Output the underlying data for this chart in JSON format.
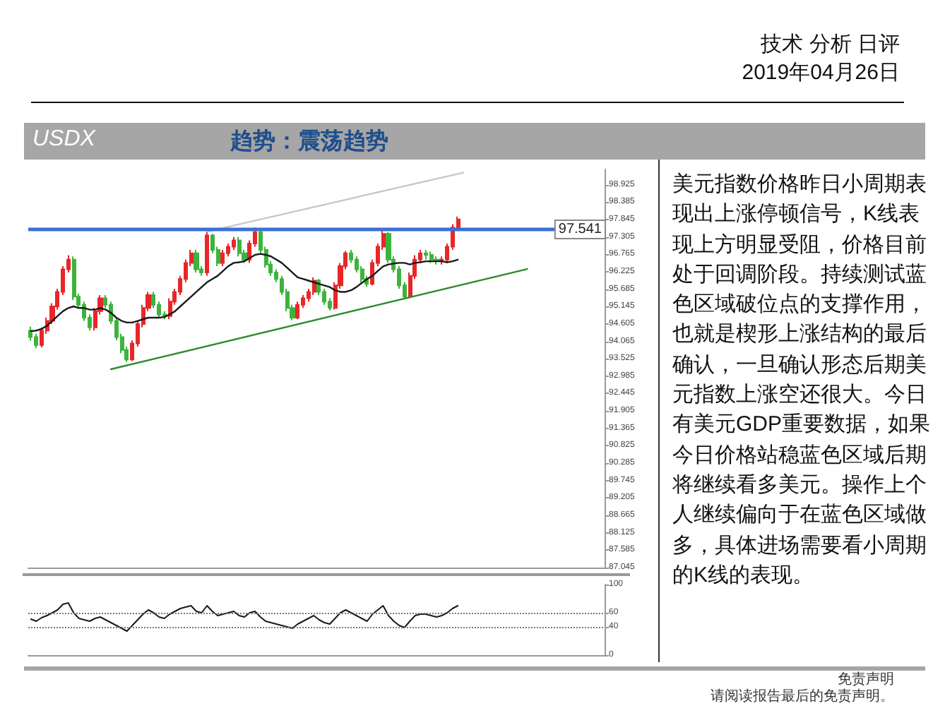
{
  "chart_data": [
    {
      "type": "candlestick",
      "title": "USDX",
      "subtitle": "趋势：震荡趋势",
      "annotations": [
        "技术 分析 日评",
        "2019年04月26日",
        "美元指数价格昨日小周期表现出上涨停顿信号，K线表现上方明显受阻，价格目前处于回调阶段。持续测试蓝色区域破位点的支撑作用，也就是楔形上涨结构的最后确认，一旦确认形态后期美元指数上涨空还很大。今日有美元GDP重要数据，如果今日价格站稳蓝色区域后期将继续看多美元。操作上个人继续偏向于在蓝色区域做多，具体进场需要看小周期的K线的表现。",
        "免责声明",
        "请阅读报告最后的免责声明。"
      ],
      "colors": [
        "#3cb43c",
        "#3cb43c",
        "#e8262a",
        "#e8262a",
        "#e8262a",
        "#e8262a",
        "#e8262a",
        "#e8262a",
        "#3cb43c",
        "#3cb43c",
        "#3cb43c",
        "#3cb43c",
        "#e8262a",
        "#e8262a",
        "#3cb43c",
        "#3cb43c",
        "#3cb43c",
        "#3cb43c",
        "#3cb43c",
        "#e8262a",
        "#e8262a",
        "#e8262a",
        "#e8262a",
        "#3cb43c",
        "#3cb43c",
        "#3cb43c",
        "#e8262a",
        "#e8262a",
        "#e8262a",
        "#e8262a",
        "#e8262a",
        "#3cb43c",
        "#3cb43c",
        "#e8262a",
        "#3cb43c",
        "#3cb43c",
        "#e8262a",
        "#e8262a",
        "#e8262a",
        "#3cb43c",
        "#3cb43c",
        "#e8262a",
        "#e8262a",
        "#3cb43c",
        "#3cb43c",
        "#3cb43c",
        "#3cb43c",
        "#3cb43c",
        "#3cb43c",
        "#3cb43c",
        "#e8262a",
        "#e8262a",
        "#e8262a",
        "#e8262a",
        "#3cb43c",
        "#3cb43c",
        "#3cb43c",
        "#e8262a",
        "#e8262a",
        "#e8262a",
        "#3cb43c",
        "#3cb43c",
        "#3cb43c",
        "#3cb43c",
        "#e8262a",
        "#e8262a",
        "#e8262a",
        "#3cb43c",
        "#3cb43c",
        "#3cb43c",
        "#3cb43c",
        "#e8262a",
        "#e8262a",
        "#e8262a",
        "#3cb43c",
        "#3cb43c",
        "#3cb43c",
        "#e8262a",
        "#e8262a",
        "#e8262a",
        "#e8262a",
        null,
        null,
        null,
        null,
        null,
        null,
        null,
        null,
        null,
        null,
        null,
        null,
        null,
        null,
        null,
        null,
        null,
        null,
        null,
        null,
        null,
        null,
        null,
        null,
        null,
        null,
        null
      ],
      "categories": [
        null,
        null,
        null,
        null,
        null,
        null,
        null,
        null,
        null,
        null,
        null,
        null,
        null,
        null,
        null,
        null,
        null,
        null,
        null,
        null,
        null,
        null,
        null,
        null,
        null,
        null,
        null,
        null,
        null,
        null,
        null,
        null,
        null,
        null,
        null,
        null,
        null,
        null,
        null,
        null,
        null,
        null,
        null,
        null,
        null,
        null,
        null,
        null,
        null,
        null,
        null,
        null,
        null,
        null,
        null,
        null,
        null,
        null,
        null,
        null,
        null,
        null,
        null,
        null,
        null,
        null,
        null,
        null,
        null,
        null,
        null,
        null,
        null,
        null,
        null,
        null,
        null,
        null,
        null,
        null,
        null,
        null,
        null,
        null,
        null,
        null,
        null,
        null,
        null,
        null,
        null,
        null,
        null,
        null,
        null,
        null,
        null,
        null,
        null,
        null,
        null,
        null,
        null,
        null,
        null,
        null,
        null,
        null
      ],
      "ohlc": [
        [
          94.4,
          94.52,
          94.08,
          94.2
        ],
        [
          94.2,
          94.3,
          93.85,
          93.95
        ],
        [
          93.95,
          94.5,
          93.88,
          94.4
        ],
        [
          94.4,
          94.8,
          94.3,
          94.7
        ],
        [
          94.7,
          95.25,
          94.6,
          95.15
        ],
        [
          95.15,
          95.7,
          95.05,
          95.6
        ],
        [
          95.6,
          96.4,
          95.5,
          96.3
        ],
        [
          96.3,
          96.74,
          96.2,
          96.6
        ],
        [
          96.6,
          96.7,
          95.35,
          95.45
        ],
        [
          95.45,
          95.55,
          95.1,
          95.2
        ],
        [
          95.2,
          95.3,
          94.7,
          94.8
        ],
        [
          94.8,
          94.9,
          94.4,
          94.5
        ],
        [
          94.5,
          95.1,
          94.4,
          95.0
        ],
        [
          95.0,
          95.5,
          94.9,
          95.4
        ],
        [
          95.4,
          95.5,
          95.1,
          95.2
        ],
        [
          95.2,
          95.3,
          94.6,
          94.7
        ],
        [
          94.7,
          94.8,
          94.1,
          94.2
        ],
        [
          94.2,
          94.3,
          93.7,
          93.8
        ],
        [
          93.8,
          93.9,
          93.43,
          93.5
        ],
        [
          93.5,
          94.1,
          93.45,
          94.0
        ],
        [
          94.0,
          94.7,
          93.9,
          94.6
        ],
        [
          94.6,
          95.2,
          94.5,
          95.1
        ],
        [
          95.1,
          95.6,
          95.0,
          95.5
        ],
        [
          95.5,
          95.6,
          95.1,
          95.2
        ],
        [
          95.2,
          95.3,
          94.8,
          94.9
        ],
        [
          94.9,
          95.0,
          94.75,
          94.85
        ],
        [
          94.85,
          95.4,
          94.75,
          95.3
        ],
        [
          95.3,
          95.7,
          95.2,
          95.6
        ],
        [
          95.6,
          96.1,
          95.5,
          96.0
        ],
        [
          96.0,
          96.6,
          95.9,
          96.5
        ],
        [
          96.5,
          96.9,
          96.4,
          96.8
        ],
        [
          96.8,
          96.9,
          96.2,
          96.3
        ],
        [
          96.3,
          96.4,
          96.1,
          96.2
        ],
        [
          96.2,
          97.47,
          96.1,
          97.35
        ],
        [
          97.35,
          97.4,
          96.8,
          96.9
        ],
        [
          96.9,
          97.0,
          96.4,
          96.5
        ],
        [
          96.5,
          96.9,
          96.4,
          96.8
        ],
        [
          96.8,
          97.1,
          96.7,
          97.0
        ],
        [
          97.0,
          97.3,
          96.9,
          97.2
        ],
        [
          97.2,
          97.3,
          96.7,
          96.8
        ],
        [
          96.8,
          96.9,
          96.5,
          96.6
        ],
        [
          96.6,
          97.2,
          96.5,
          97.1
        ],
        [
          97.1,
          97.6,
          97.0,
          97.45
        ],
        [
          97.45,
          97.5,
          96.8,
          96.9
        ],
        [
          96.9,
          97.0,
          96.35,
          96.45
        ],
        [
          96.45,
          96.55,
          96.1,
          96.2
        ],
        [
          96.2,
          96.3,
          95.9,
          96.0
        ],
        [
          96.0,
          96.1,
          95.5,
          95.6
        ],
        [
          95.6,
          95.7,
          95.0,
          95.1
        ],
        [
          95.1,
          95.2,
          94.72,
          94.8
        ],
        [
          94.8,
          95.3,
          94.75,
          95.2
        ],
        [
          95.2,
          95.5,
          95.1,
          95.4
        ],
        [
          95.4,
          95.7,
          95.3,
          95.6
        ],
        [
          95.6,
          96.05,
          95.5,
          95.95
        ],
        [
          95.95,
          96.0,
          95.5,
          95.6
        ],
        [
          95.6,
          95.7,
          95.2,
          95.3
        ],
        [
          95.3,
          95.4,
          95.02,
          95.1
        ],
        [
          95.1,
          95.9,
          95.05,
          95.8
        ],
        [
          95.8,
          96.5,
          95.7,
          96.4
        ],
        [
          96.4,
          96.87,
          96.3,
          96.8
        ],
        [
          96.8,
          96.9,
          96.5,
          96.6
        ],
        [
          96.6,
          96.7,
          96.2,
          96.3
        ],
        [
          96.3,
          96.4,
          95.9,
          96.0
        ],
        [
          96.0,
          96.1,
          95.75,
          95.85
        ],
        [
          95.85,
          96.6,
          95.8,
          96.5
        ],
        [
          96.5,
          97.1,
          96.4,
          97.0
        ],
        [
          97.0,
          97.51,
          96.9,
          97.4
        ],
        [
          97.4,
          97.45,
          96.5,
          96.6
        ],
        [
          96.6,
          96.7,
          96.2,
          96.3
        ],
        [
          96.3,
          96.4,
          95.7,
          95.8
        ],
        [
          95.8,
          95.9,
          95.37,
          95.45
        ],
        [
          95.45,
          96.2,
          95.4,
          96.1
        ],
        [
          96.1,
          96.74,
          96.0,
          96.6
        ],
        [
          96.6,
          96.9,
          96.5,
          96.8
        ],
        [
          96.8,
          96.9,
          96.6,
          96.75
        ],
        [
          96.75,
          96.85,
          96.5,
          96.6
        ],
        [
          96.6,
          96.7,
          96.45,
          96.55
        ],
        [
          96.55,
          96.7,
          96.45,
          96.6
        ],
        [
          96.6,
          97.1,
          96.5,
          97.0
        ],
        [
          97.0,
          97.7,
          96.9,
          97.6
        ],
        [
          97.6,
          97.94,
          97.5,
          97.85
        ],
        null,
        null,
        null,
        null,
        null,
        null,
        null,
        null,
        null,
        null,
        null,
        null,
        null,
        null,
        null,
        null,
        null,
        null,
        null,
        null,
        null,
        null,
        null,
        null,
        null,
        null,
        null
      ],
      "series": [
        {
          "type": "line",
          "color": "#1a1a1a",
          "values": [
            94.38,
            94.4,
            94.45,
            94.55,
            94.7,
            94.85,
            95.0,
            95.1,
            95.15,
            95.1,
            95.1,
            95.05,
            95.05,
            95.1,
            95.05,
            94.95,
            94.8,
            94.7,
            94.65,
            94.65,
            94.7,
            94.75,
            94.8,
            94.8,
            94.8,
            94.82,
            94.9,
            95.0,
            95.15,
            95.3,
            95.45,
            95.6,
            95.75,
            95.9,
            96.0,
            96.1,
            96.25,
            96.4,
            96.5,
            96.52,
            96.55,
            96.65,
            96.75,
            96.78,
            96.75,
            96.7,
            96.6,
            96.5,
            96.35,
            96.2,
            96.05,
            96.0,
            95.95,
            95.9,
            95.85,
            95.8,
            95.75,
            95.65,
            95.6,
            95.6,
            95.65,
            95.75,
            95.88,
            96.0,
            96.1,
            96.25,
            96.39,
            96.45,
            96.48,
            96.5,
            96.5,
            96.45,
            96.5,
            96.52,
            96.55,
            96.55,
            96.55,
            96.55,
            96.52,
            96.55,
            96.6,
            null,
            null,
            null,
            null,
            null,
            null,
            null,
            null,
            null,
            null,
            null,
            null,
            null,
            null,
            null,
            null,
            null,
            null,
            null,
            null,
            null,
            null,
            null,
            null,
            null,
            null,
            null
          ]
        },
        {
          "type": "line",
          "color": "#2e8b2e",
          "values": [
            null,
            null,
            null,
            null,
            null,
            null,
            null,
            null,
            null,
            null,
            null,
            null,
            null,
            null,
            null,
            93.2,
            null,
            null,
            null,
            null,
            null,
            null,
            null,
            null,
            null,
            null,
            null,
            null,
            null,
            null,
            null,
            null,
            null,
            null,
            null,
            null,
            null,
            null,
            null,
            null,
            null,
            null,
            null,
            null,
            null,
            null,
            null,
            null,
            null,
            null,
            null,
            null,
            null,
            null,
            null,
            null,
            null,
            null,
            null,
            null,
            null,
            null,
            null,
            null,
            null,
            null,
            null,
            null,
            null,
            null,
            null,
            null,
            null,
            null,
            null,
            null,
            null,
            null,
            null,
            null,
            null,
            null,
            null,
            null,
            null,
            null,
            null,
            null,
            null,
            null,
            null,
            null,
            null,
            96.31,
            null,
            null,
            null,
            null,
            null,
            null,
            null,
            null,
            null,
            null,
            null,
            null,
            null,
            null
          ]
        },
        {
          "type": "line",
          "color": "#c8c8c8",
          "values": [
            null,
            null,
            null,
            null,
            null,
            null,
            null,
            null,
            null,
            null,
            null,
            null,
            null,
            null,
            null,
            null,
            null,
            null,
            null,
            null,
            null,
            null,
            null,
            null,
            null,
            null,
            null,
            null,
            null,
            null,
            null,
            null,
            null,
            97.47,
            null,
            null,
            null,
            null,
            null,
            null,
            null,
            null,
            null,
            null,
            null,
            null,
            null,
            null,
            null,
            null,
            null,
            null,
            null,
            null,
            null,
            null,
            null,
            null,
            null,
            null,
            null,
            null,
            null,
            null,
            null,
            null,
            null,
            null,
            null,
            null,
            null,
            null,
            null,
            null,
            null,
            null,
            null,
            null,
            null,
            null,
            null,
            99.3,
            null,
            null,
            null,
            null,
            null,
            null,
            null,
            null,
            null,
            null,
            null,
            null,
            null,
            null,
            null,
            null,
            null,
            null,
            null,
            null,
            null,
            null,
            null,
            null,
            null,
            null
          ]
        }
      ],
      "ref_lines": [
        {
          "axis": "y",
          "value": 97.541,
          "label": "97.541",
          "color": "#3b6fd8"
        }
      ],
      "ylim": [
        87.045,
        99.4
      ],
      "yticks": [
        87.045,
        87.585,
        88.125,
        88.665,
        89.205,
        89.745,
        90.285,
        90.825,
        91.365,
        91.905,
        92.445,
        92.985,
        93.525,
        94.065,
        94.605,
        95.145,
        95.685,
        96.225,
        96.765,
        97.305,
        97.845,
        98.385,
        98.925
      ],
      "tick_labels": "y"
    },
    {
      "type": "line",
      "color": "#1a1a1a",
      "categories": [
        null,
        null,
        null,
        null,
        null,
        null,
        null,
        null,
        null,
        null,
        null,
        null,
        null,
        null,
        null,
        null,
        null,
        null,
        null,
        null,
        null,
        null,
        null,
        null,
        null,
        null,
        null,
        null,
        null,
        null,
        null,
        null,
        null,
        null,
        null,
        null,
        null,
        null,
        null,
        null,
        null,
        null,
        null,
        null,
        null,
        null,
        null,
        null,
        null,
        null,
        null,
        null,
        null,
        null,
        null,
        null,
        null,
        null,
        null,
        null,
        null,
        null,
        null,
        null,
        null,
        null,
        null,
        null,
        null,
        null,
        null,
        null,
        null,
        null,
        null,
        null,
        null,
        null,
        null,
        null,
        null,
        null,
        null,
        null,
        null,
        null,
        null,
        null,
        null,
        null,
        null,
        null,
        null,
        null,
        null,
        null,
        null,
        null,
        null,
        null,
        null,
        null,
        null,
        null,
        null,
        null,
        null,
        null
      ],
      "values": [
        51,
        48,
        53,
        56,
        60,
        64,
        72,
        74,
        60,
        52,
        50,
        48,
        52,
        54,
        50,
        46,
        42,
        38,
        34,
        42,
        50,
        58,
        64,
        60,
        54,
        52,
        58,
        62,
        66,
        68,
        70,
        62,
        60,
        70,
        62,
        56,
        58,
        60,
        62,
        56,
        54,
        60,
        62,
        54,
        48,
        46,
        44,
        42,
        40,
        38,
        44,
        48,
        52,
        56,
        50,
        46,
        44,
        52,
        60,
        64,
        60,
        56,
        52,
        48,
        58,
        64,
        70,
        56,
        48,
        42,
        39,
        48,
        56,
        58,
        58,
        56,
        54,
        56,
        60,
        66,
        70,
        null,
        null,
        null,
        null,
        null,
        null,
        null,
        null,
        null,
        null,
        null,
        null,
        null,
        null,
        null,
        null,
        null,
        null,
        null,
        null,
        null,
        null,
        null,
        null,
        null,
        null,
        null
      ],
      "ref_lines": [
        {
          "axis": "y",
          "value": 60,
          "label": null,
          "color": "#777777",
          "line_style": "dotted"
        },
        {
          "axis": "y",
          "value": 40,
          "label": null,
          "color": "#777777",
          "line_style": "dotted"
        }
      ],
      "ylim": [
        0,
        100
      ],
      "yticks": [
        0,
        40,
        60,
        100
      ],
      "tick_labels": "y"
    }
  ]
}
